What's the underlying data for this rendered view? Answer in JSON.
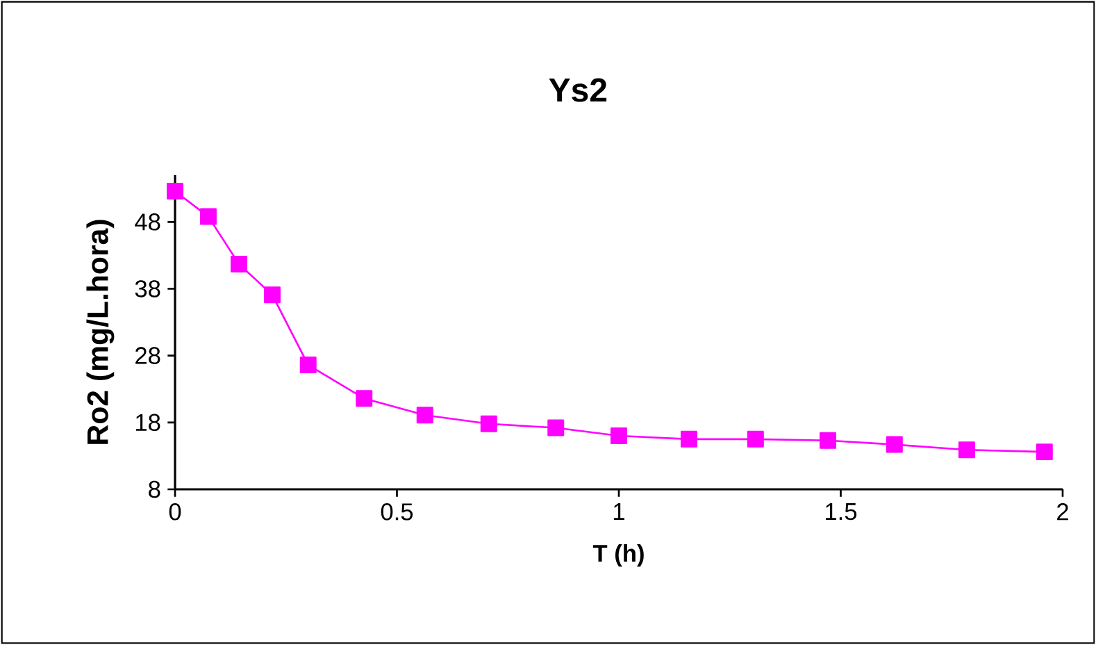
{
  "chart_data": {
    "type": "line",
    "title": "Ys2",
    "xlabel": "T (h)",
    "ylabel": "Ro2 (mg/L.hora)",
    "x": [
      0,
      0.075,
      0.144,
      0.219,
      0.3,
      0.426,
      0.563,
      0.707,
      0.858,
      1.0,
      1.158,
      1.308,
      1.471,
      1.621,
      1.784,
      1.959
    ],
    "series": [
      {
        "color": "#ff00ff",
        "values": [
          52.6,
          48.8,
          41.7,
          37.1,
          26.6,
          21.6,
          19.1,
          17.8,
          17.2,
          16.0,
          15.5,
          15.5,
          15.3,
          14.7,
          13.9,
          13.6
        ]
      }
    ],
    "xlim": [
      0,
      2
    ],
    "ylim": [
      8,
      55
    ],
    "xticks": [
      0,
      0.5,
      1,
      1.5,
      2
    ],
    "yticks": [
      8,
      18,
      28,
      38,
      48
    ],
    "marker": "square",
    "line_style": "solid",
    "grid": false
  }
}
